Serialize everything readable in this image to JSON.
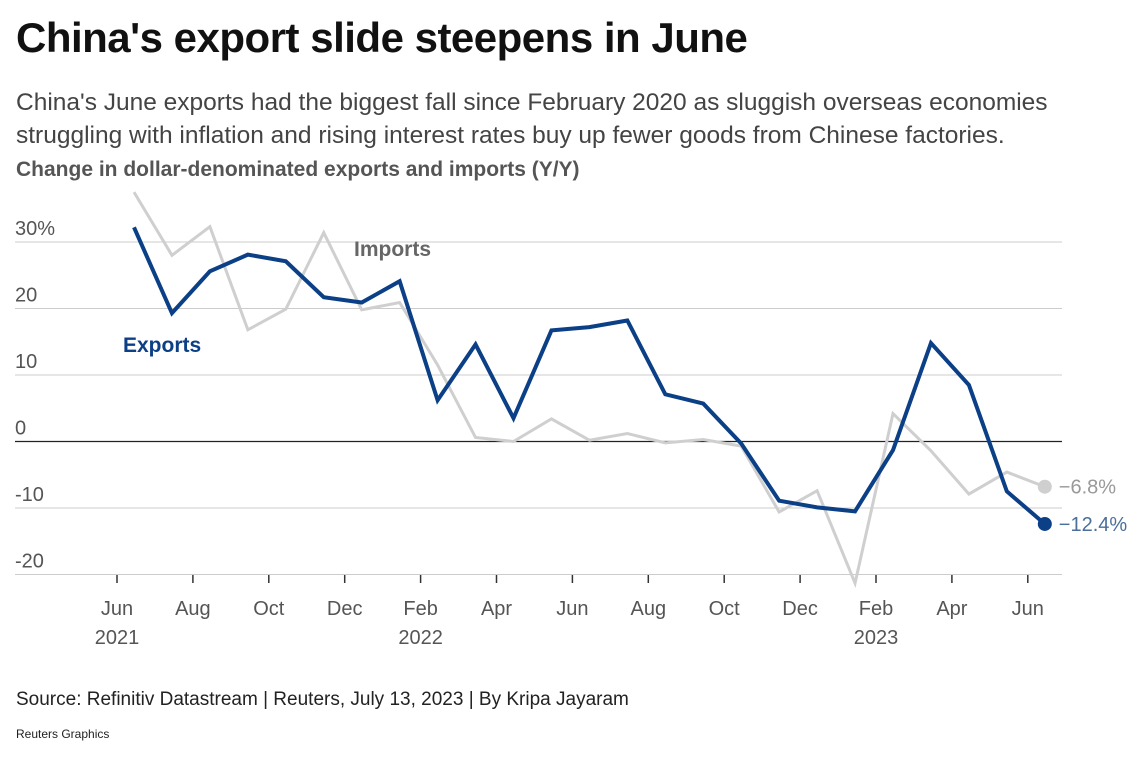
{
  "header": {
    "title": "China's export slide steepens in June",
    "subtitle": "China's June exports had the biggest fall since February 2020 as sluggish overseas economies struggling with inflation and rising interest rates buy up fewer goods from Chinese factories.",
    "chart_label": "Change in dollar-denominated exports and imports (Y/Y)"
  },
  "footer": {
    "source": "Source: Refinitiv Datastream | Reuters, July 13, 2023 | By Kripa Jayaram",
    "brand": "Reuters Graphics"
  },
  "colors": {
    "exports": "#0b3f86",
    "imports": "#cfcfcf",
    "imports_end_label": "#999999",
    "exports_end_label": "#4a6f9a",
    "gridline": "#cccccc",
    "zero_line": "#222222",
    "axis": "#333333"
  },
  "chart_data": {
    "type": "line",
    "title": "China's export slide steepens in June",
    "subtitle": "Change in dollar-denominated exports and imports (Y/Y)",
    "x": [
      "2021-06",
      "2021-07",
      "2021-08",
      "2021-09",
      "2021-10",
      "2021-11",
      "2021-12",
      "2022-01",
      "2022-02",
      "2022-03",
      "2022-04",
      "2022-05",
      "2022-06",
      "2022-07",
      "2022-08",
      "2022-09",
      "2022-10",
      "2022-11",
      "2022-12",
      "2023-01",
      "2023-02",
      "2023-03",
      "2023-04",
      "2023-05",
      "2023-06"
    ],
    "x_tick_labels": [
      {
        "month": "Jun",
        "year": "2021",
        "x": "2021-06"
      },
      {
        "month": "Aug",
        "year": "",
        "x": "2021-08"
      },
      {
        "month": "Oct",
        "year": "",
        "x": "2021-10"
      },
      {
        "month": "Dec",
        "year": "",
        "x": "2021-12"
      },
      {
        "month": "Feb",
        "year": "2022",
        "x": "2022-02"
      },
      {
        "month": "Apr",
        "year": "",
        "x": "2022-04"
      },
      {
        "month": "Jun",
        "year": "",
        "x": "2022-06"
      },
      {
        "month": "Aug",
        "year": "",
        "x": "2022-08"
      },
      {
        "month": "Oct",
        "year": "",
        "x": "2022-10"
      },
      {
        "month": "Dec",
        "year": "",
        "x": "2022-12"
      },
      {
        "month": "Feb",
        "year": "2023",
        "x": "2023-02"
      },
      {
        "month": "Apr",
        "year": "",
        "x": "2023-04"
      },
      {
        "month": "Jun",
        "year": "",
        "x": "2023-06"
      }
    ],
    "y_ticks": [
      {
        "value": 30,
        "label": "30%"
      },
      {
        "value": 20,
        "label": "20"
      },
      {
        "value": 10,
        "label": "10"
      },
      {
        "value": 0,
        "label": "0"
      },
      {
        "value": -10,
        "label": "-10"
      },
      {
        "value": -20,
        "label": "-20"
      }
    ],
    "ylim": [
      -20,
      35
    ],
    "grid": true,
    "series": [
      {
        "name": "Imports",
        "values": [
          37.5,
          28.0,
          32.3,
          16.8,
          19.9,
          31.4,
          19.8,
          20.9,
          11.5,
          0.6,
          0.0,
          3.4,
          0.2,
          1.2,
          -0.2,
          0.3,
          -0.7,
          -10.6,
          -7.4,
          -21.3,
          4.2,
          -1.4,
          -7.9,
          -4.6,
          -6.8
        ],
        "end_label": "−6.8%"
      },
      {
        "name": "Exports",
        "values": [
          32.2,
          19.3,
          25.6,
          28.1,
          27.1,
          21.7,
          20.9,
          24.1,
          6.2,
          14.6,
          3.5,
          16.7,
          17.2,
          18.2,
          7.1,
          5.7,
          -0.3,
          -8.9,
          -9.9,
          -10.5,
          -1.3,
          14.8,
          8.5,
          -7.5,
          -12.4
        ],
        "end_label": "−12.4%"
      }
    ]
  }
}
